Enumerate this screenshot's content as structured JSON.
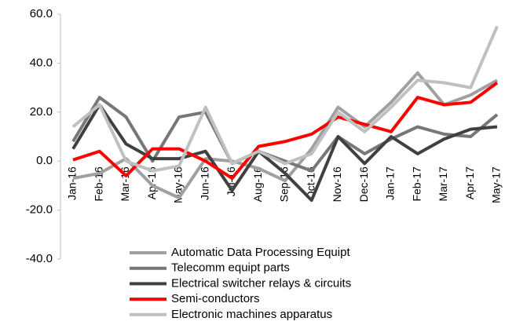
{
  "chart_data": {
    "type": "line",
    "categories": [
      "Jan-16",
      "Feb-16",
      "Mar-16",
      "Apr-16",
      "May-16",
      "Jun-16",
      "Jul-16",
      "Aug-16",
      "Sep-16",
      "Oct-16",
      "Nov-16",
      "Dec-16",
      "Jan-17",
      "Feb-17",
      "Mar-17",
      "Apr-17",
      "May-17"
    ],
    "ylim": [
      -40,
      60
    ],
    "yticks": [
      {
        "value": -40,
        "label": "-40.0"
      },
      {
        "value": -20,
        "label": "-20.0"
      },
      {
        "value": 0,
        "label": "0.0"
      },
      {
        "value": 20,
        "label": "20.0"
      },
      {
        "value": 40,
        "label": "40.0"
      },
      {
        "value": 60,
        "label": "60.0"
      }
    ],
    "grid": false,
    "legend": "bottom",
    "series": [
      {
        "name": "Automatic Data Processing Equipt",
        "color": "#a0a0a0",
        "values": [
          -7,
          -5,
          1,
          -10,
          -15,
          1,
          0,
          -3,
          -8,
          5,
          22,
          14,
          24,
          36,
          23,
          27,
          33
        ]
      },
      {
        "name": "Telecomm equipt parts",
        "color": "#777777",
        "values": [
          8,
          26,
          18,
          0,
          18,
          20,
          -1,
          4,
          0,
          -4,
          10,
          3,
          9,
          14,
          11,
          10,
          19
        ]
      },
      {
        "name": "Electrical switcher relays & circuits",
        "color": "#404040",
        "values": [
          5,
          23,
          7,
          1,
          1,
          4,
          -12,
          4,
          -5,
          -16,
          10,
          -1,
          10,
          3,
          9,
          13,
          14
        ]
      },
      {
        "name": "Semi-conductors",
        "color": "#ff0000",
        "values": [
          0.5,
          4,
          -6,
          5,
          5,
          0,
          -7,
          6,
          8,
          11,
          18,
          15,
          12,
          26,
          23,
          24,
          32
        ]
      },
      {
        "name": "Electronic machines apparatus",
        "color": "#c0c0c0",
        "values": [
          14,
          23,
          0,
          -4,
          -2,
          22,
          -1,
          4,
          -1,
          3,
          20,
          12,
          22,
          33,
          32,
          30,
          55
        ]
      }
    ]
  }
}
